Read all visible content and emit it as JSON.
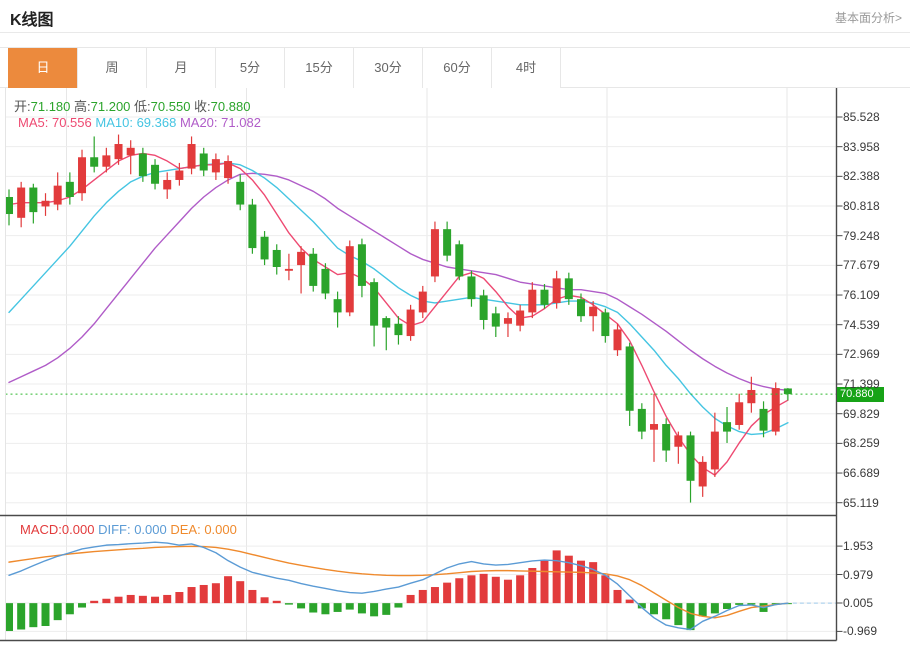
{
  "header": {
    "title": "K线图",
    "link": "基本面分析>"
  },
  "tabs": {
    "labels": [
      "日",
      "周",
      "月",
      "5分",
      "15分",
      "30分",
      "60分",
      "4时"
    ],
    "active_index": 0
  },
  "ohlc_legend": {
    "open_label": "开:",
    "open_value": "71.180",
    "high_label": "高:",
    "high_value": "71.200",
    "low_label": "低:",
    "low_value": "70.550",
    "close_label": "收:",
    "close_value": "70.880"
  },
  "ma_legend": {
    "ma5_label": "MA5:",
    "ma5_value": "70.556",
    "ma10_label": "MA10:",
    "ma10_value": "69.368",
    "ma20_label": "MA20:",
    "ma20_value": "71.082"
  },
  "macd_legend": {
    "macd_label": "MACD:",
    "macd_value": "0.000",
    "diff_label": "DIFF:",
    "diff_value": "0.000",
    "dea_label": "DEA:",
    "dea_value": "0.000"
  },
  "price_axis": {
    "ticks": [
      "85.528",
      "83.958",
      "82.388",
      "80.818",
      "79.248",
      "77.679",
      "76.109",
      "74.539",
      "72.969",
      "71.399",
      "69.829",
      "68.259",
      "66.689",
      "65.119"
    ],
    "current_price": "70.880"
  },
  "macd_axis": {
    "ticks": [
      "1.953",
      "0.979",
      "0.005",
      "-0.969"
    ]
  },
  "colors": {
    "up": "#e23b3c",
    "down": "#2ba42b",
    "ma5": "#ee4a72",
    "ma10": "#45c5e2",
    "ma20": "#b05cc8",
    "diff": "#5b9bd5",
    "dea": "#ef8a2d",
    "tab_active_bg": "#ec8a3d",
    "price_tag_bg": "#17a317",
    "dotted_price_line": "#2eb82e",
    "zero_dash_blue": "#9ec9ea",
    "grid": "#ededed",
    "vgrid": "#e7e7e7",
    "dark_line": "#4a4a4a",
    "ohlc_value_green": "#2ba42b",
    "label_text": "#555555"
  },
  "chart_data": {
    "type": "candlestick+macd",
    "title": "K线图 (daily K-line with MA5/MA10/MA20 and MACD)",
    "price_ticks": [
      85.528,
      83.958,
      82.388,
      80.818,
      79.248,
      77.679,
      76.109,
      74.539,
      72.969,
      71.399,
      69.829,
      68.259,
      66.689,
      65.119
    ],
    "macd_ticks": [
      1.953,
      0.979,
      0.005,
      -0.969
    ],
    "current_price": 70.88,
    "last_candle": {
      "open": 71.18,
      "high": 71.2,
      "low": 70.55,
      "close": 70.88
    },
    "candles": [
      [
        81.3,
        81.7,
        79.8,
        80.4
      ],
      [
        80.2,
        82.1,
        79.7,
        81.8
      ],
      [
        81.8,
        82.0,
        79.9,
        80.5
      ],
      [
        80.8,
        81.5,
        80.3,
        81.1
      ],
      [
        80.9,
        82.6,
        80.6,
        81.9
      ],
      [
        82.1,
        82.6,
        80.9,
        81.3
      ],
      [
        81.5,
        83.8,
        81.1,
        83.4
      ],
      [
        83.4,
        84.5,
        82.6,
        82.9
      ],
      [
        82.9,
        83.9,
        82.6,
        83.5
      ],
      [
        83.3,
        84.6,
        83.0,
        84.1
      ],
      [
        83.5,
        84.3,
        82.5,
        83.9
      ],
      [
        83.6,
        83.9,
        82.1,
        82.4
      ],
      [
        83.0,
        83.3,
        81.7,
        82.0
      ],
      [
        81.7,
        82.6,
        81.2,
        82.2
      ],
      [
        82.2,
        83.1,
        81.9,
        82.7
      ],
      [
        82.8,
        84.5,
        82.5,
        84.1
      ],
      [
        83.6,
        83.9,
        82.4,
        82.7
      ],
      [
        82.6,
        83.6,
        82.2,
        83.3
      ],
      [
        82.3,
        83.5,
        82.0,
        83.2
      ],
      [
        82.1,
        82.5,
        80.6,
        80.9
      ],
      [
        80.9,
        81.2,
        78.3,
        78.6
      ],
      [
        79.2,
        79.5,
        77.7,
        78.0
      ],
      [
        78.5,
        78.8,
        77.2,
        77.6
      ],
      [
        77.4,
        78.3,
        76.9,
        77.5
      ],
      [
        77.7,
        78.7,
        76.2,
        78.4
      ],
      [
        78.3,
        78.6,
        76.3,
        76.6
      ],
      [
        77.5,
        77.8,
        75.9,
        76.2
      ],
      [
        75.9,
        76.3,
        74.4,
        75.2
      ],
      [
        75.2,
        79.0,
        75.0,
        78.7
      ],
      [
        78.8,
        79.1,
        76.0,
        76.6
      ],
      [
        76.8,
        77.0,
        73.4,
        74.5
      ],
      [
        74.9,
        75.0,
        73.2,
        74.4
      ],
      [
        74.6,
        75.0,
        73.5,
        74.0
      ],
      [
        73.95,
        75.6,
        73.7,
        75.35
      ],
      [
        75.2,
        76.6,
        74.9,
        76.3
      ],
      [
        77.1,
        80.0,
        76.8,
        79.6
      ],
      [
        79.6,
        80.0,
        77.9,
        78.2
      ],
      [
        78.8,
        79.0,
        76.9,
        77.1
      ],
      [
        77.1,
        77.4,
        75.5,
        75.9
      ],
      [
        76.1,
        76.4,
        74.3,
        74.8
      ],
      [
        75.15,
        75.5,
        73.9,
        74.45
      ],
      [
        74.6,
        75.2,
        73.9,
        74.9
      ],
      [
        74.5,
        75.6,
        74.2,
        75.3
      ],
      [
        75.2,
        76.8,
        74.9,
        76.4
      ],
      [
        76.4,
        76.7,
        75.4,
        75.6
      ],
      [
        75.7,
        77.4,
        75.4,
        77.0
      ],
      [
        77.0,
        77.3,
        75.6,
        75.9
      ],
      [
        75.9,
        76.2,
        74.7,
        75.0
      ],
      [
        75.0,
        75.8,
        74.2,
        75.5
      ],
      [
        75.2,
        75.4,
        73.6,
        73.95
      ],
      [
        73.2,
        74.6,
        72.9,
        74.3
      ],
      [
        73.4,
        73.6,
        69.2,
        70.0
      ],
      [
        70.1,
        70.4,
        68.5,
        68.9
      ],
      [
        69.0,
        70.9,
        67.3,
        69.3
      ],
      [
        69.3,
        69.6,
        67.3,
        67.9
      ],
      [
        68.1,
        68.9,
        67.2,
        68.7
      ],
      [
        68.7,
        68.9,
        65.15,
        66.3
      ],
      [
        66.0,
        67.6,
        65.45,
        67.3
      ],
      [
        66.9,
        69.9,
        66.5,
        68.9
      ],
      [
        69.4,
        70.2,
        68.3,
        68.9
      ],
      [
        69.25,
        70.9,
        69.0,
        70.45
      ],
      [
        70.4,
        71.8,
        69.9,
        71.1
      ],
      [
        70.1,
        70.5,
        68.6,
        68.95
      ],
      [
        68.9,
        71.5,
        68.7,
        71.2
      ],
      [
        71.18,
        71.2,
        70.55,
        70.88
      ]
    ],
    "ma5": [
      80.9,
      81,
      81,
      81,
      81.1,
      81.3,
      81.7,
      82.2,
      82.7,
      83.2,
      83.5,
      83.6,
      83.5,
      83.2,
      82.8,
      82.9,
      83,
      83,
      83.1,
      82.8,
      82.2,
      81.4,
      80.4,
      79.4,
      78.6,
      78,
      77.6,
      77.2,
      77.3,
      77,
      76.5,
      75.7,
      74.9,
      74.5,
      74.7,
      75.5,
      76.3,
      77.1,
      77.3,
      77,
      76.3,
      75.5,
      74.9,
      75,
      75.4,
      75.9,
      76.1,
      76,
      75.6,
      75.1,
      74.6,
      73.7,
      72.4,
      71,
      69.7,
      68.6,
      67.7,
      67,
      66.6,
      67.3,
      68.3,
      69.2,
      69.8,
      70.2,
      70.56
    ],
    "ma10": [
      75.2,
      75.9,
      76.6,
      77.3,
      78,
      78.7,
      79.5,
      80.3,
      81,
      81.6,
      82.1,
      82.4,
      82.6,
      82.7,
      82.8,
      82.9,
      83,
      83.05,
      83.1,
      83,
      82.7,
      82.3,
      81.8,
      81.2,
      80.6,
      80,
      79.3,
      78.6,
      78.2,
      77.9,
      77.5,
      77,
      76.5,
      76.1,
      75.8,
      75.7,
      75.8,
      75.9,
      76,
      75.9,
      75.8,
      75.7,
      75.6,
      75.6,
      75.6,
      75.7,
      75.8,
      75.8,
      75.7,
      75.5,
      75.2,
      74.6,
      73.9,
      73.2,
      72.4,
      71.7,
      70.9,
      70.2,
      69.6,
      69.2,
      68.9,
      68.75,
      68.8,
      69.05,
      69.37
    ],
    "ma20": [
      71.5,
      71.8,
      72.1,
      72.4,
      72.8,
      73.3,
      73.9,
      74.6,
      75.4,
      76.2,
      77,
      77.8,
      78.6,
      79.3,
      80,
      80.7,
      81.3,
      81.8,
      82.2,
      82.5,
      82.55,
      82.5,
      82.4,
      82.2,
      81.9,
      81.6,
      81.2,
      80.7,
      80.3,
      79.9,
      79.5,
      79.1,
      78.7,
      78.3,
      78,
      77.8,
      77.6,
      77.5,
      77.4,
      77.3,
      77.2,
      77,
      76.8,
      76.7,
      76.6,
      76.5,
      76.4,
      76.4,
      76.3,
      76.2,
      75.9,
      75.5,
      75.1,
      74.65,
      74.2,
      73.7,
      73.2,
      72.75,
      72.35,
      72,
      71.7,
      71.45,
      71.28,
      71.15,
      71.08
    ],
    "macd_bars": [
      -0.95,
      -0.9,
      -0.82,
      -0.78,
      -0.58,
      -0.38,
      -0.15,
      0.08,
      0.15,
      0.22,
      0.28,
      0.25,
      0.22,
      0.28,
      0.38,
      0.55,
      0.62,
      0.68,
      0.92,
      0.75,
      0.45,
      0.2,
      0.08,
      -0.05,
      -0.18,
      -0.32,
      -0.38,
      -0.3,
      -0.22,
      -0.35,
      -0.45,
      -0.4,
      -0.15,
      0.28,
      0.45,
      0.55,
      0.7,
      0.85,
      0.95,
      1,
      0.9,
      0.8,
      0.95,
      1.2,
      1.45,
      1.8,
      1.62,
      1.45,
      1.4,
      0.95,
      0.45,
      0.12,
      -0.18,
      -0.38,
      -0.55,
      -0.75,
      -0.92,
      -0.45,
      -0.35,
      -0.2,
      -0.06,
      -0.05,
      -0.3,
      -0.04,
      -0.01
    ],
    "diff": [
      0.95,
      1.1,
      1.28,
      1.45,
      1.6,
      1.72,
      1.85,
      1.92,
      1.98,
      2,
      2.03,
      2.05,
      2.08,
      2.05,
      1.98,
      2.02,
      1.9,
      1.72,
      1.45,
      1.23,
      1.05,
      0.95,
      0.85,
      0.78,
      0.67,
      0.58,
      0.5,
      0.42,
      0.36,
      0.34,
      0.4,
      0.48,
      0.55,
      0.68,
      0.8,
      1,
      1.2,
      1.34,
      1.42,
      1.34,
      1.3,
      1.32,
      1.38,
      1.44,
      1.47,
      1.45,
      1.38,
      1.28,
      1.15,
      0.95,
      0.65,
      0.25,
      -0.15,
      -0.5,
      -0.75,
      -0.84,
      -0.9,
      -0.62,
      -0.45,
      -0.25,
      -0.08,
      -0.06,
      -0.15,
      -0.05,
      0
    ],
    "dea": [
      1.4,
      1.46,
      1.52,
      1.58,
      1.63,
      1.68,
      1.72,
      1.76,
      1.79,
      1.82,
      1.85,
      1.87,
      1.9,
      1.92,
      1.93,
      1.94,
      1.93,
      1.9,
      1.84,
      1.76,
      1.66,
      1.56,
      1.46,
      1.37,
      1.29,
      1.22,
      1.15,
      1.09,
      1.04,
      1,
      0.97,
      0.95,
      0.94,
      0.94,
      0.95,
      0.97,
      1,
      1.04,
      1.08,
      1.1,
      1.11,
      1.11,
      1.1,
      1.09,
      1.08,
      1.07,
      1.06,
      1.05,
      1.03,
      1,
      0.93,
      0.8,
      0.6,
      0.35,
      0.1,
      -0.15,
      -0.35,
      -0.45,
      -0.5,
      -0.42,
      -0.28,
      -0.15,
      -0.1,
      -0.05,
      0
    ]
  }
}
